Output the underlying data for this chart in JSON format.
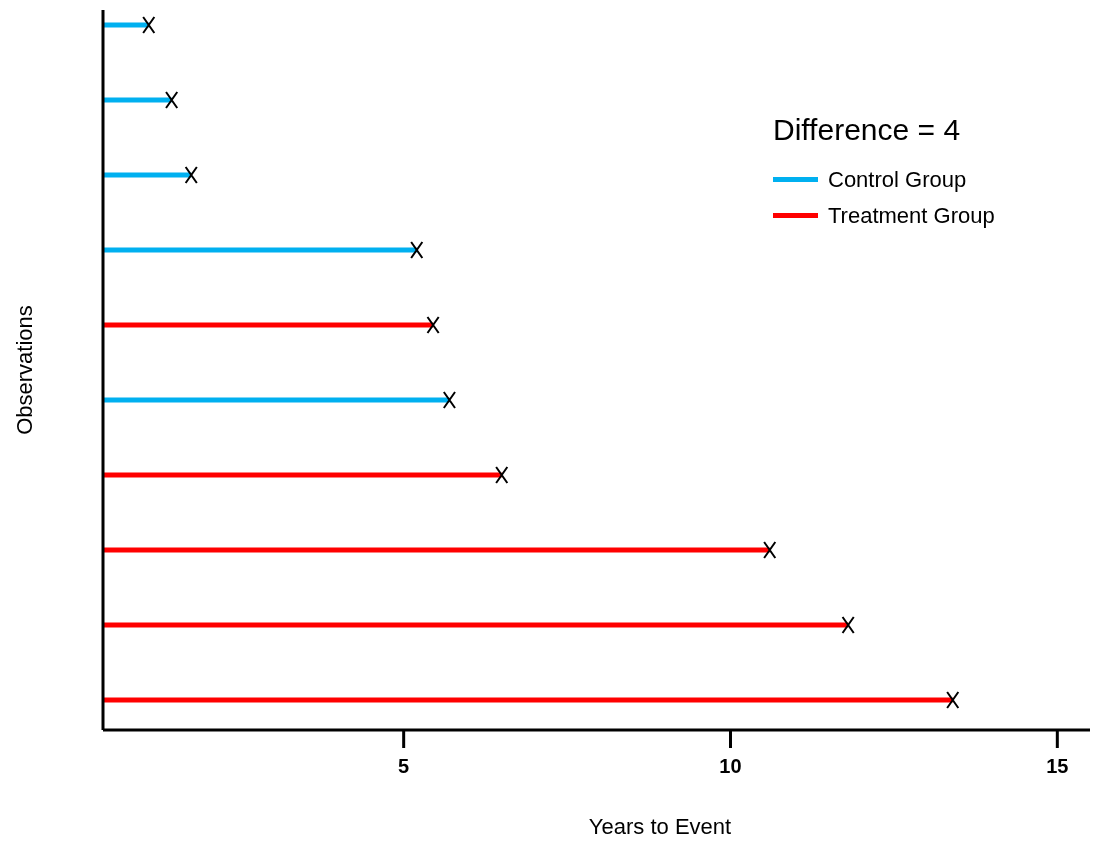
{
  "chart_data": {
    "type": "bar",
    "orientation": "horizontal",
    "xlabel": "Years to Event",
    "ylabel": "Observations",
    "categories": [
      null,
      null,
      null,
      null,
      null,
      null,
      null,
      null,
      null,
      null
    ],
    "series": [
      {
        "name": "Control Group",
        "color": "#00b0f0",
        "values": [
          1.1,
          1.45,
          1.75,
          5.2,
          null,
          5.7,
          null,
          null,
          null,
          null
        ]
      },
      {
        "name": "Treatment Group",
        "color": "#ff0000",
        "values": [
          null,
          null,
          null,
          null,
          5.45,
          null,
          6.5,
          10.6,
          11.8,
          13.4
        ]
      }
    ],
    "xlim": [
      0.4,
      15.5
    ],
    "xticks": [
      5,
      10,
      15
    ],
    "legend": "top right",
    "legend_title": "Difference = 4",
    "marker": "cross",
    "grid": false
  }
}
